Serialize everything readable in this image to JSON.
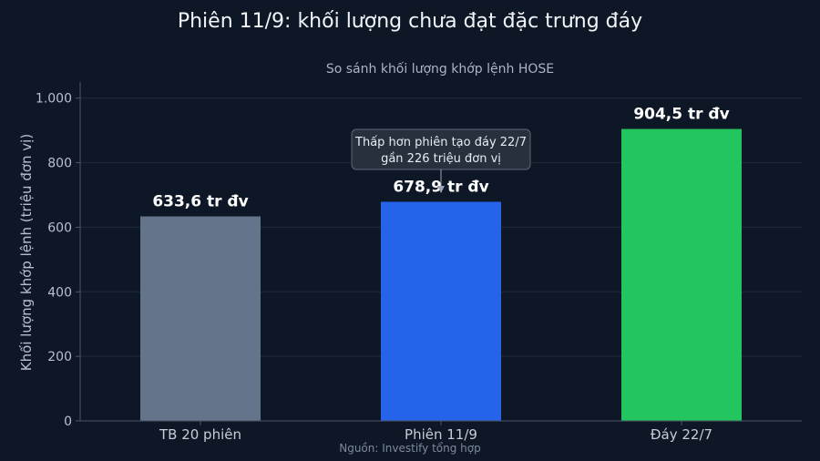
{
  "chart_data": {
    "type": "bar",
    "title": "Phiên 11/9: khối lượng chưa đạt đặc trưng đáy",
    "subtitle": "So sánh khối lượng khớp lệnh HOSE",
    "ylabel": "Khối lượng khớp lệnh (triệu đơn vị)",
    "xlabel": "",
    "categories": [
      "TB 20 phiên",
      "Phiên 11/9",
      "Đáy 22/7"
    ],
    "values": [
      633.6,
      678.9,
      904.5
    ],
    "data_labels": [
      "633,6 tr đv",
      "678,9 tr đv",
      "904,5 tr đv"
    ],
    "colors": [
      "#64748b",
      "#2563eb",
      "#22c55e"
    ],
    "ylim": [
      0,
      1050
    ],
    "yticks": [
      0,
      200,
      400,
      600,
      800,
      1000
    ],
    "ytick_labels": [
      "0",
      "200",
      "400",
      "600",
      "800",
      "1.000"
    ],
    "grid": true,
    "annotation": {
      "target_category": "Phiên 11/9",
      "lines": [
        "Thấp hơn phiên tạo đáy 22/7",
        "gần 226 triệu đơn vị"
      ]
    },
    "source": "Nguồn: Investify tổng hợp"
  },
  "colors": {
    "background": "#0e1726",
    "grid": "#1e2a3b",
    "axis": "#4a5668",
    "annotation_box": "#27303d",
    "annotation_border": "#5b6676"
  }
}
